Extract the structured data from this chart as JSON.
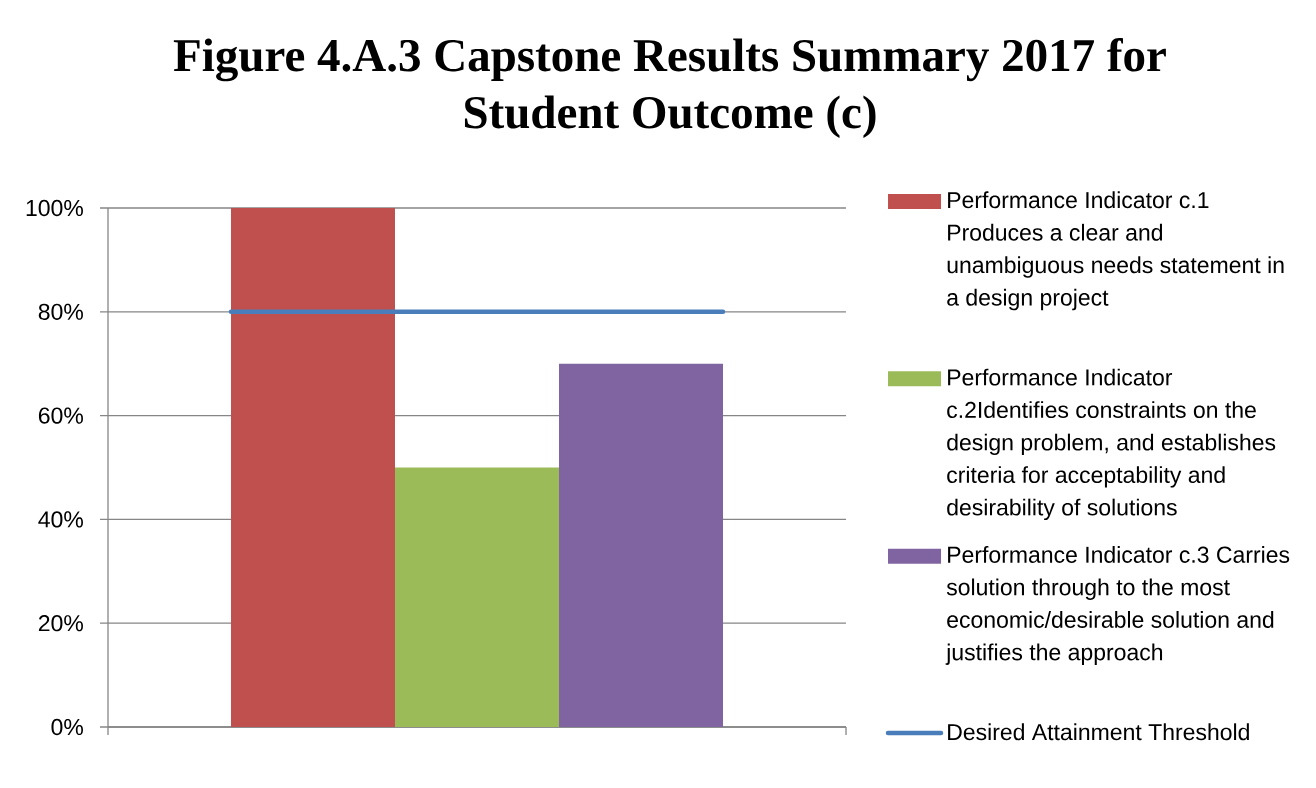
{
  "chart_data": {
    "type": "bar",
    "title": "Figure 4.A.3 Capstone Results Summary 2017 for Student Outcome (c)",
    "categories": [
      null
    ],
    "series": [
      {
        "name": "Performance Indicator c.1 Produces a clear and unambiguous needs statement in a design project",
        "color": "#c0504d",
        "values": [
          100
        ]
      },
      {
        "name": "Performance Indicator c.2Identifies constraints on the design problem, and establishes criteria for acceptability and desirability of solutions",
        "color": "#9bbb59",
        "values": [
          50
        ]
      },
      {
        "name": "Performance Indicator c.3 Carries solution through to the most economic/desirable solution and justifies the approach",
        "color": "#8064a2",
        "values": [
          70
        ]
      }
    ],
    "ylim": [
      0,
      100
    ],
    "yticks": [
      {
        "value": 0,
        "label": "0%"
      },
      {
        "value": 20,
        "label": "20%"
      },
      {
        "value": 40,
        "label": "40%"
      },
      {
        "value": 60,
        "label": "60%"
      },
      {
        "value": 80,
        "label": "80%"
      },
      {
        "value": 100,
        "label": "100%"
      }
    ],
    "grid": "y",
    "legend": "right",
    "ref_lines": [
      {
        "axis": "y",
        "value": 80,
        "label": "Desired Attainment Threshold",
        "color": "#4a7ebb"
      }
    ]
  }
}
